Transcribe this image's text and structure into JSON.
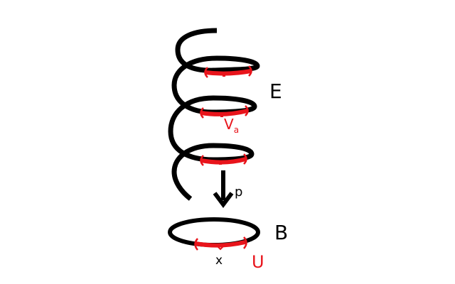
{
  "labels": {
    "total_space": "E",
    "base_space": "B",
    "projection": "p",
    "point": "x",
    "neighborhood": "U",
    "sheet": "V",
    "sheet_index": "a"
  },
  "colors": {
    "curve": "#000000",
    "highlight": "#e8141b",
    "background": "#ffffff"
  }
}
